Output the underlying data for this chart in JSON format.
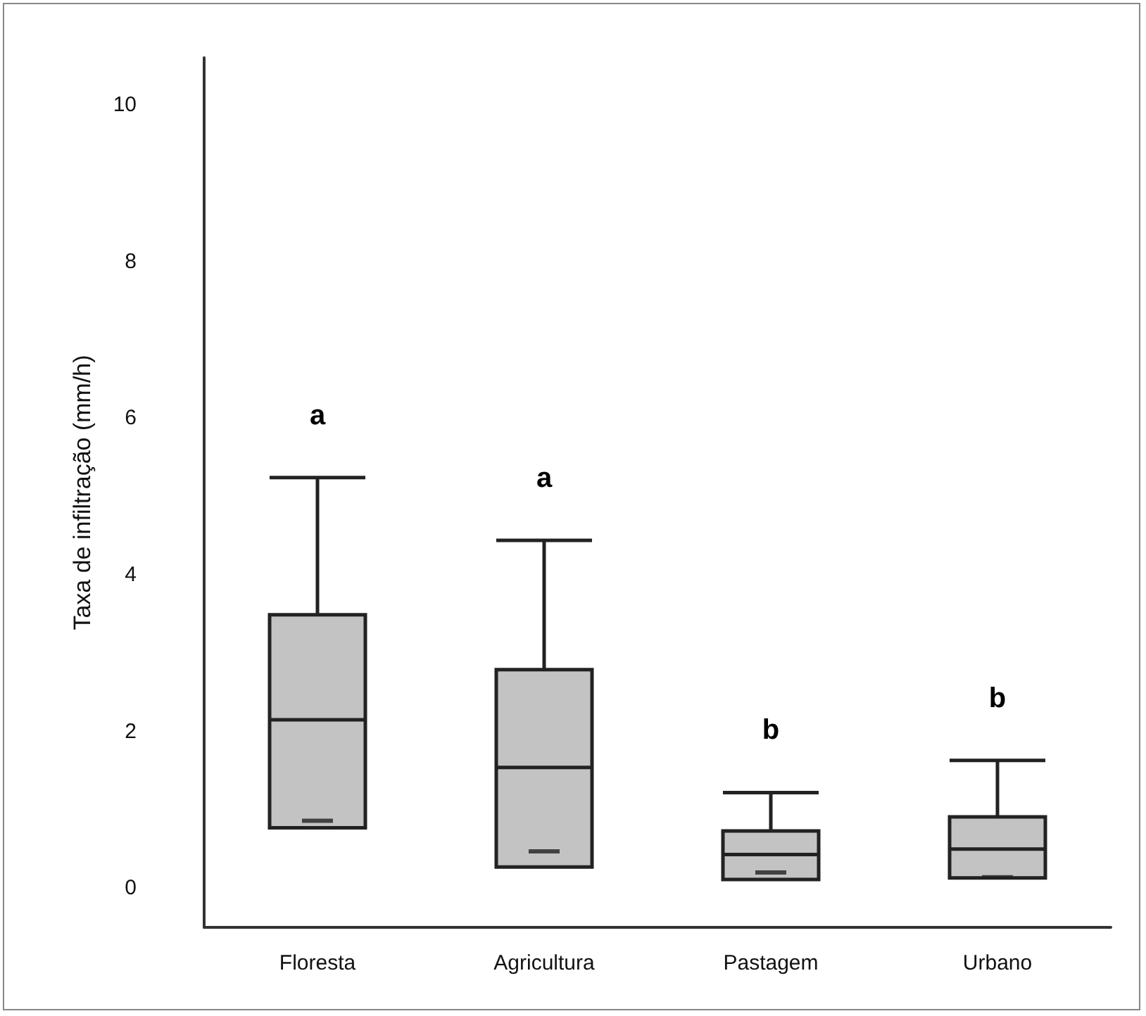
{
  "chart_data": {
    "type": "box",
    "ylabel": "Taxa de infiltração (mm/h)",
    "categories": [
      "Floresta",
      "Agricultura",
      "Pastagem",
      "Urbano"
    ],
    "ylim": [
      -0.5,
      10.6
    ],
    "yticks": [
      0,
      2,
      4,
      6,
      8,
      10
    ],
    "series": [
      {
        "color": "#c3c3c3",
        "boxes": [
          {
            "low": 0.77,
            "q1": 0.77,
            "median": 2.15,
            "q3": 3.49,
            "high": 5.24,
            "mean": 0.86
          },
          {
            "low": 0.27,
            "q1": 0.27,
            "median": 1.54,
            "q3": 2.79,
            "high": 4.44,
            "mean": 0.47
          },
          {
            "low": 0.11,
            "q1": 0.11,
            "median": 0.43,
            "q3": 0.73,
            "high": 1.22,
            "mean": 0.2
          },
          {
            "low": 0.13,
            "q1": 0.13,
            "median": 0.5,
            "q3": 0.91,
            "high": 1.63,
            "mean": 0.14
          }
        ]
      }
    ],
    "annotations": [
      "a",
      "a",
      "b",
      "b"
    ]
  }
}
